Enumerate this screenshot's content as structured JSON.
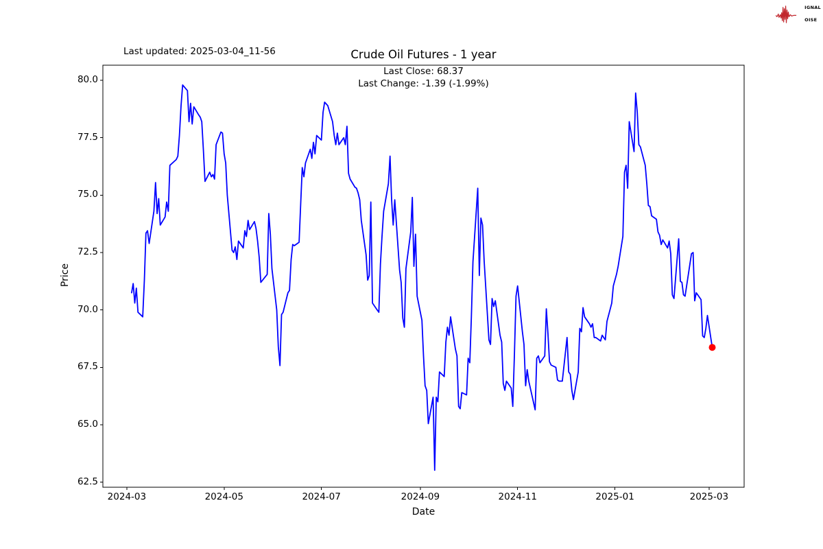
{
  "header": {
    "last_updated": "Last updated: 2025-03-04_11-56",
    "logo": {
      "red": "#c1272d",
      "dark": "#2a2426",
      "lines": [
        {
          "boxed": "S",
          "rest": "IGNAL"
        },
        {
          "boxed": "2",
          "rest": ""
        },
        {
          "boxed": "N",
          "rest": "OISE"
        }
      ]
    }
  },
  "chart_data": {
    "type": "line",
    "title": "Crude Oil Futures - 1 year",
    "subtitle_lines": [
      "Last Close: 68.37",
      "Last Change: -1.39 (-1.99%)"
    ],
    "last_close": 68.37,
    "last_change": -1.39,
    "last_change_pct": "-1.99%",
    "xlabel": "Date",
    "ylabel": "Price",
    "grid": false,
    "legend": null,
    "line_color": "#0000ff",
    "endpoint_color": "#ff0000",
    "ylim": [
      62.28,
      80.66
    ],
    "xlim": [
      "2024-02-15",
      "2025-03-23"
    ],
    "y_ticks": [
      {
        "label": "80.0",
        "value": 80.0
      },
      {
        "label": "77.5",
        "value": 77.5
      },
      {
        "label": "75.0",
        "value": 75.0
      },
      {
        "label": "72.5",
        "value": 72.5
      },
      {
        "label": "70.0",
        "value": 70.0
      },
      {
        "label": "67.5",
        "value": 67.5
      },
      {
        "label": "65.0",
        "value": 65.0
      },
      {
        "label": "62.5",
        "value": 62.5
      }
    ],
    "x_ticks": [
      {
        "label": "2024-03",
        "date": "2024-03-01"
      },
      {
        "label": "2024-05",
        "date": "2024-05-01"
      },
      {
        "label": "2024-07",
        "date": "2024-07-01"
      },
      {
        "label": "2024-09",
        "date": "2024-09-01"
      },
      {
        "label": "2024-11",
        "date": "2024-11-01"
      },
      {
        "label": "2025-01",
        "date": "2025-01-01"
      },
      {
        "label": "2025-03",
        "date": "2025-03-01"
      }
    ],
    "series": [
      {
        "name": "Crude Oil Futures",
        "points": [
          [
            "2024-03-04",
            70.75
          ],
          [
            "2024-03-05",
            71.15
          ],
          [
            "2024-03-06",
            70.3
          ],
          [
            "2024-03-07",
            70.95
          ],
          [
            "2024-03-08",
            69.9
          ],
          [
            "2024-03-11",
            69.7
          ],
          [
            "2024-03-12",
            71.3
          ],
          [
            "2024-03-13",
            73.35
          ],
          [
            "2024-03-14",
            73.45
          ],
          [
            "2024-03-15",
            72.9
          ],
          [
            "2024-03-18",
            74.3
          ],
          [
            "2024-03-19",
            75.55
          ],
          [
            "2024-03-20",
            74.2
          ],
          [
            "2024-03-21",
            74.85
          ],
          [
            "2024-03-22",
            73.7
          ],
          [
            "2024-03-25",
            74.05
          ],
          [
            "2024-03-26",
            74.7
          ],
          [
            "2024-03-27",
            74.3
          ],
          [
            "2024-03-28",
            76.3
          ],
          [
            "2024-04-01",
            76.55
          ],
          [
            "2024-04-02",
            76.7
          ],
          [
            "2024-04-03",
            77.6
          ],
          [
            "2024-04-04",
            78.9
          ],
          [
            "2024-04-05",
            79.8
          ],
          [
            "2024-04-08",
            79.55
          ],
          [
            "2024-04-09",
            78.2
          ],
          [
            "2024-04-10",
            79.0
          ],
          [
            "2024-04-11",
            78.1
          ],
          [
            "2024-04-12",
            78.85
          ],
          [
            "2024-04-15",
            78.5
          ],
          [
            "2024-04-16",
            78.4
          ],
          [
            "2024-04-17",
            78.2
          ],
          [
            "2024-04-18",
            77.0
          ],
          [
            "2024-04-19",
            75.6
          ],
          [
            "2024-04-22",
            76.0
          ],
          [
            "2024-04-23",
            75.8
          ],
          [
            "2024-04-24",
            75.9
          ],
          [
            "2024-04-25",
            75.7
          ],
          [
            "2024-04-26",
            77.2
          ],
          [
            "2024-04-29",
            77.75
          ],
          [
            "2024-04-30",
            77.7
          ],
          [
            "2024-05-01",
            76.8
          ],
          [
            "2024-05-02",
            76.4
          ],
          [
            "2024-05-03",
            75.0
          ],
          [
            "2024-05-06",
            72.6
          ],
          [
            "2024-05-07",
            72.5
          ],
          [
            "2024-05-08",
            72.75
          ],
          [
            "2024-05-09",
            72.2
          ],
          [
            "2024-05-10",
            73.0
          ],
          [
            "2024-05-13",
            72.7
          ],
          [
            "2024-05-14",
            73.45
          ],
          [
            "2024-05-15",
            73.2
          ],
          [
            "2024-05-16",
            73.9
          ],
          [
            "2024-05-17",
            73.5
          ],
          [
            "2024-05-20",
            73.85
          ],
          [
            "2024-05-21",
            73.55
          ],
          [
            "2024-05-22",
            73.0
          ],
          [
            "2024-05-23",
            72.3
          ],
          [
            "2024-05-24",
            71.2
          ],
          [
            "2024-05-28",
            71.55
          ],
          [
            "2024-05-29",
            74.2
          ],
          [
            "2024-05-30",
            73.3
          ],
          [
            "2024-05-31",
            71.8
          ],
          [
            "2024-06-03",
            70.0
          ],
          [
            "2024-06-04",
            68.4
          ],
          [
            "2024-06-05",
            67.58
          ],
          [
            "2024-06-06",
            69.8
          ],
          [
            "2024-06-07",
            69.9
          ],
          [
            "2024-06-10",
            70.75
          ],
          [
            "2024-06-11",
            70.85
          ],
          [
            "2024-06-12",
            72.2
          ],
          [
            "2024-06-13",
            72.85
          ],
          [
            "2024-06-14",
            72.8
          ],
          [
            "2024-06-17",
            72.95
          ],
          [
            "2024-06-18",
            74.6
          ],
          [
            "2024-06-19",
            76.2
          ],
          [
            "2024-06-20",
            75.8
          ],
          [
            "2024-06-21",
            76.4
          ],
          [
            "2024-06-24",
            77.0
          ],
          [
            "2024-06-25",
            76.6
          ],
          [
            "2024-06-26",
            77.3
          ],
          [
            "2024-06-27",
            76.8
          ],
          [
            "2024-06-28",
            77.6
          ],
          [
            "2024-07-01",
            77.4
          ],
          [
            "2024-07-02",
            78.6
          ],
          [
            "2024-07-03",
            79.05
          ],
          [
            "2024-07-05",
            78.9
          ],
          [
            "2024-07-08",
            78.2
          ],
          [
            "2024-07-09",
            77.6
          ],
          [
            "2024-07-10",
            77.2
          ],
          [
            "2024-07-11",
            77.7
          ],
          [
            "2024-07-12",
            77.2
          ],
          [
            "2024-07-15",
            77.5
          ],
          [
            "2024-07-16",
            77.2
          ],
          [
            "2024-07-17",
            78.0
          ],
          [
            "2024-07-18",
            75.95
          ],
          [
            "2024-07-19",
            75.7
          ],
          [
            "2024-07-22",
            75.35
          ],
          [
            "2024-07-23",
            75.3
          ],
          [
            "2024-07-24",
            75.1
          ],
          [
            "2024-07-25",
            74.8
          ],
          [
            "2024-07-26",
            73.9
          ],
          [
            "2024-07-29",
            72.4
          ],
          [
            "2024-07-30",
            71.3
          ],
          [
            "2024-07-31",
            71.5
          ],
          [
            "2024-08-01",
            74.7
          ],
          [
            "2024-08-02",
            70.3
          ],
          [
            "2024-08-05",
            70.0
          ],
          [
            "2024-08-06",
            69.9
          ],
          [
            "2024-08-07",
            72.0
          ],
          [
            "2024-08-08",
            73.2
          ],
          [
            "2024-08-09",
            74.3
          ],
          [
            "2024-08-12",
            75.5
          ],
          [
            "2024-08-13",
            76.7
          ],
          [
            "2024-08-14",
            74.8
          ],
          [
            "2024-08-15",
            73.7
          ],
          [
            "2024-08-16",
            74.8
          ],
          [
            "2024-08-19",
            71.75
          ],
          [
            "2024-08-20",
            71.2
          ],
          [
            "2024-08-21",
            69.65
          ],
          [
            "2024-08-22",
            69.25
          ],
          [
            "2024-08-23",
            71.8
          ],
          [
            "2024-08-26",
            73.4
          ],
          [
            "2024-08-27",
            74.9
          ],
          [
            "2024-08-28",
            71.9
          ],
          [
            "2024-08-29",
            73.3
          ],
          [
            "2024-08-30",
            70.6
          ],
          [
            "2024-09-02",
            69.55
          ],
          [
            "2024-09-03",
            68.0
          ],
          [
            "2024-09-04",
            66.7
          ],
          [
            "2024-09-05",
            66.5
          ],
          [
            "2024-09-06",
            65.05
          ],
          [
            "2024-09-09",
            66.2
          ],
          [
            "2024-09-10",
            63.02
          ],
          [
            "2024-09-11",
            66.2
          ],
          [
            "2024-09-12",
            66.0
          ],
          [
            "2024-09-13",
            67.3
          ],
          [
            "2024-09-16",
            67.1
          ],
          [
            "2024-09-17",
            68.6
          ],
          [
            "2024-09-18",
            69.25
          ],
          [
            "2024-09-19",
            68.9
          ],
          [
            "2024-09-20",
            69.7
          ],
          [
            "2024-09-23",
            68.3
          ],
          [
            "2024-09-24",
            68.0
          ],
          [
            "2024-09-25",
            65.8
          ],
          [
            "2024-09-26",
            65.7
          ],
          [
            "2024-09-27",
            66.4
          ],
          [
            "2024-09-30",
            66.3
          ],
          [
            "2024-10-01",
            67.9
          ],
          [
            "2024-10-02",
            67.7
          ],
          [
            "2024-10-03",
            69.7
          ],
          [
            "2024-10-04",
            72.1
          ],
          [
            "2024-10-07",
            75.3
          ],
          [
            "2024-10-08",
            71.5
          ],
          [
            "2024-10-09",
            74.0
          ],
          [
            "2024-10-10",
            73.7
          ],
          [
            "2024-10-11",
            72.15
          ],
          [
            "2024-10-14",
            68.7
          ],
          [
            "2024-10-15",
            68.5
          ],
          [
            "2024-10-16",
            70.5
          ],
          [
            "2024-10-17",
            70.15
          ],
          [
            "2024-10-18",
            70.4
          ],
          [
            "2024-10-21",
            68.9
          ],
          [
            "2024-10-22",
            68.6
          ],
          [
            "2024-10-23",
            66.8
          ],
          [
            "2024-10-24",
            66.5
          ],
          [
            "2024-10-25",
            66.9
          ],
          [
            "2024-10-28",
            66.6
          ],
          [
            "2024-10-29",
            65.8
          ],
          [
            "2024-10-30",
            68.1
          ],
          [
            "2024-10-31",
            70.6
          ],
          [
            "2024-11-01",
            71.05
          ],
          [
            "2024-11-04",
            69.05
          ],
          [
            "2024-11-05",
            68.5
          ],
          [
            "2024-11-06",
            66.7
          ],
          [
            "2024-11-07",
            67.4
          ],
          [
            "2024-11-08",
            66.9
          ],
          [
            "2024-11-12",
            65.65
          ],
          [
            "2024-11-13",
            67.9
          ],
          [
            "2024-11-14",
            68.0
          ],
          [
            "2024-11-15",
            67.7
          ],
          [
            "2024-11-18",
            68.0
          ],
          [
            "2024-11-19",
            70.05
          ],
          [
            "2024-11-20",
            69.0
          ],
          [
            "2024-11-21",
            67.75
          ],
          [
            "2024-11-22",
            67.6
          ],
          [
            "2024-11-25",
            67.5
          ],
          [
            "2024-11-26",
            66.95
          ],
          [
            "2024-11-27",
            66.9
          ],
          [
            "2024-11-29",
            66.9
          ],
          [
            "2024-12-02",
            68.8
          ],
          [
            "2024-12-03",
            67.3
          ],
          [
            "2024-12-04",
            67.2
          ],
          [
            "2024-12-05",
            66.5
          ],
          [
            "2024-12-06",
            66.1
          ],
          [
            "2024-12-09",
            67.3
          ],
          [
            "2024-12-10",
            69.2
          ],
          [
            "2024-12-11",
            69.05
          ],
          [
            "2024-12-12",
            70.1
          ],
          [
            "2024-12-13",
            69.7
          ],
          [
            "2024-12-16",
            69.4
          ],
          [
            "2024-12-17",
            69.25
          ],
          [
            "2024-12-18",
            69.4
          ],
          [
            "2024-12-19",
            68.8
          ],
          [
            "2024-12-20",
            68.8
          ],
          [
            "2024-12-23",
            68.65
          ],
          [
            "2024-12-24",
            68.9
          ],
          [
            "2024-12-26",
            68.7
          ],
          [
            "2024-12-27",
            69.5
          ],
          [
            "2024-12-30",
            70.3
          ],
          [
            "2024-12-31",
            71.05
          ],
          [
            "2025-01-02",
            71.55
          ],
          [
            "2025-01-03",
            71.9
          ],
          [
            "2025-01-06",
            73.2
          ],
          [
            "2025-01-07",
            76.0
          ],
          [
            "2025-01-08",
            76.3
          ],
          [
            "2025-01-09",
            75.3
          ],
          [
            "2025-01-10",
            78.2
          ],
          [
            "2025-01-13",
            76.9
          ],
          [
            "2025-01-14",
            79.45
          ],
          [
            "2025-01-15",
            78.6
          ],
          [
            "2025-01-16",
            77.2
          ],
          [
            "2025-01-17",
            77.1
          ],
          [
            "2025-01-20",
            76.3
          ],
          [
            "2025-01-21",
            75.5
          ],
          [
            "2025-01-22",
            74.55
          ],
          [
            "2025-01-23",
            74.5
          ],
          [
            "2025-01-24",
            74.1
          ],
          [
            "2025-01-27",
            73.95
          ],
          [
            "2025-01-28",
            73.4
          ],
          [
            "2025-01-29",
            73.25
          ],
          [
            "2025-01-30",
            72.85
          ],
          [
            "2025-01-31",
            73.05
          ],
          [
            "2025-02-03",
            72.7
          ],
          [
            "2025-02-04",
            73.0
          ],
          [
            "2025-02-05",
            72.45
          ],
          [
            "2025-02-06",
            70.66
          ],
          [
            "2025-02-07",
            70.5
          ],
          [
            "2025-02-10",
            73.1
          ],
          [
            "2025-02-11",
            71.25
          ],
          [
            "2025-02-12",
            71.2
          ],
          [
            "2025-02-13",
            70.66
          ],
          [
            "2025-02-14",
            70.6
          ],
          [
            "2025-02-18",
            72.45
          ],
          [
            "2025-02-19",
            72.5
          ],
          [
            "2025-02-20",
            70.4
          ],
          [
            "2025-02-21",
            70.75
          ],
          [
            "2025-02-24",
            70.45
          ],
          [
            "2025-02-25",
            68.87
          ],
          [
            "2025-02-26",
            68.8
          ],
          [
            "2025-02-27",
            69.2
          ],
          [
            "2025-02-28",
            69.76
          ],
          [
            "2025-03-03",
            68.37
          ]
        ]
      }
    ]
  }
}
